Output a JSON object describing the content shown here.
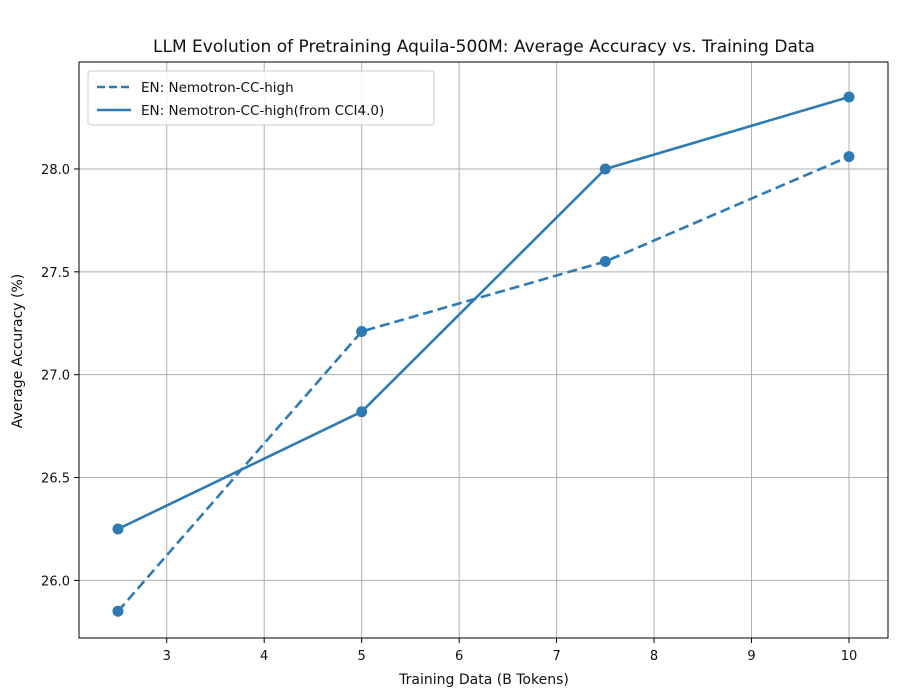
{
  "chart_data": {
    "type": "line",
    "title": "LLM Evolution of Pretraining Aquila-500M: Average Accuracy vs. Training Data",
    "xlabel": "Training Data (B Tokens)",
    "ylabel": "Average Accuracy (%)",
    "xlim": [
      2.1,
      10.4
    ],
    "ylim": [
      25.72,
      28.52
    ],
    "xticks": [
      3,
      4,
      5,
      6,
      7,
      8,
      9,
      10
    ],
    "yticks": [
      26.0,
      26.5,
      27.0,
      27.5,
      28.0
    ],
    "grid": true,
    "legend_position": "top-left",
    "series": [
      {
        "name": "EN: Nemotron-CC-high",
        "style": "dashed",
        "color": "#2e7bb4",
        "x": [
          2.5,
          5,
          7.5,
          10
        ],
        "y": [
          25.85,
          27.21,
          27.55,
          28.06
        ]
      },
      {
        "name": "EN: Nemotron-CC-high(from CCI4.0)",
        "style": "solid",
        "color": "#2e7bb4",
        "x": [
          2.5,
          5,
          7.5,
          10
        ],
        "y": [
          26.25,
          26.82,
          28.0,
          28.35
        ]
      }
    ]
  }
}
